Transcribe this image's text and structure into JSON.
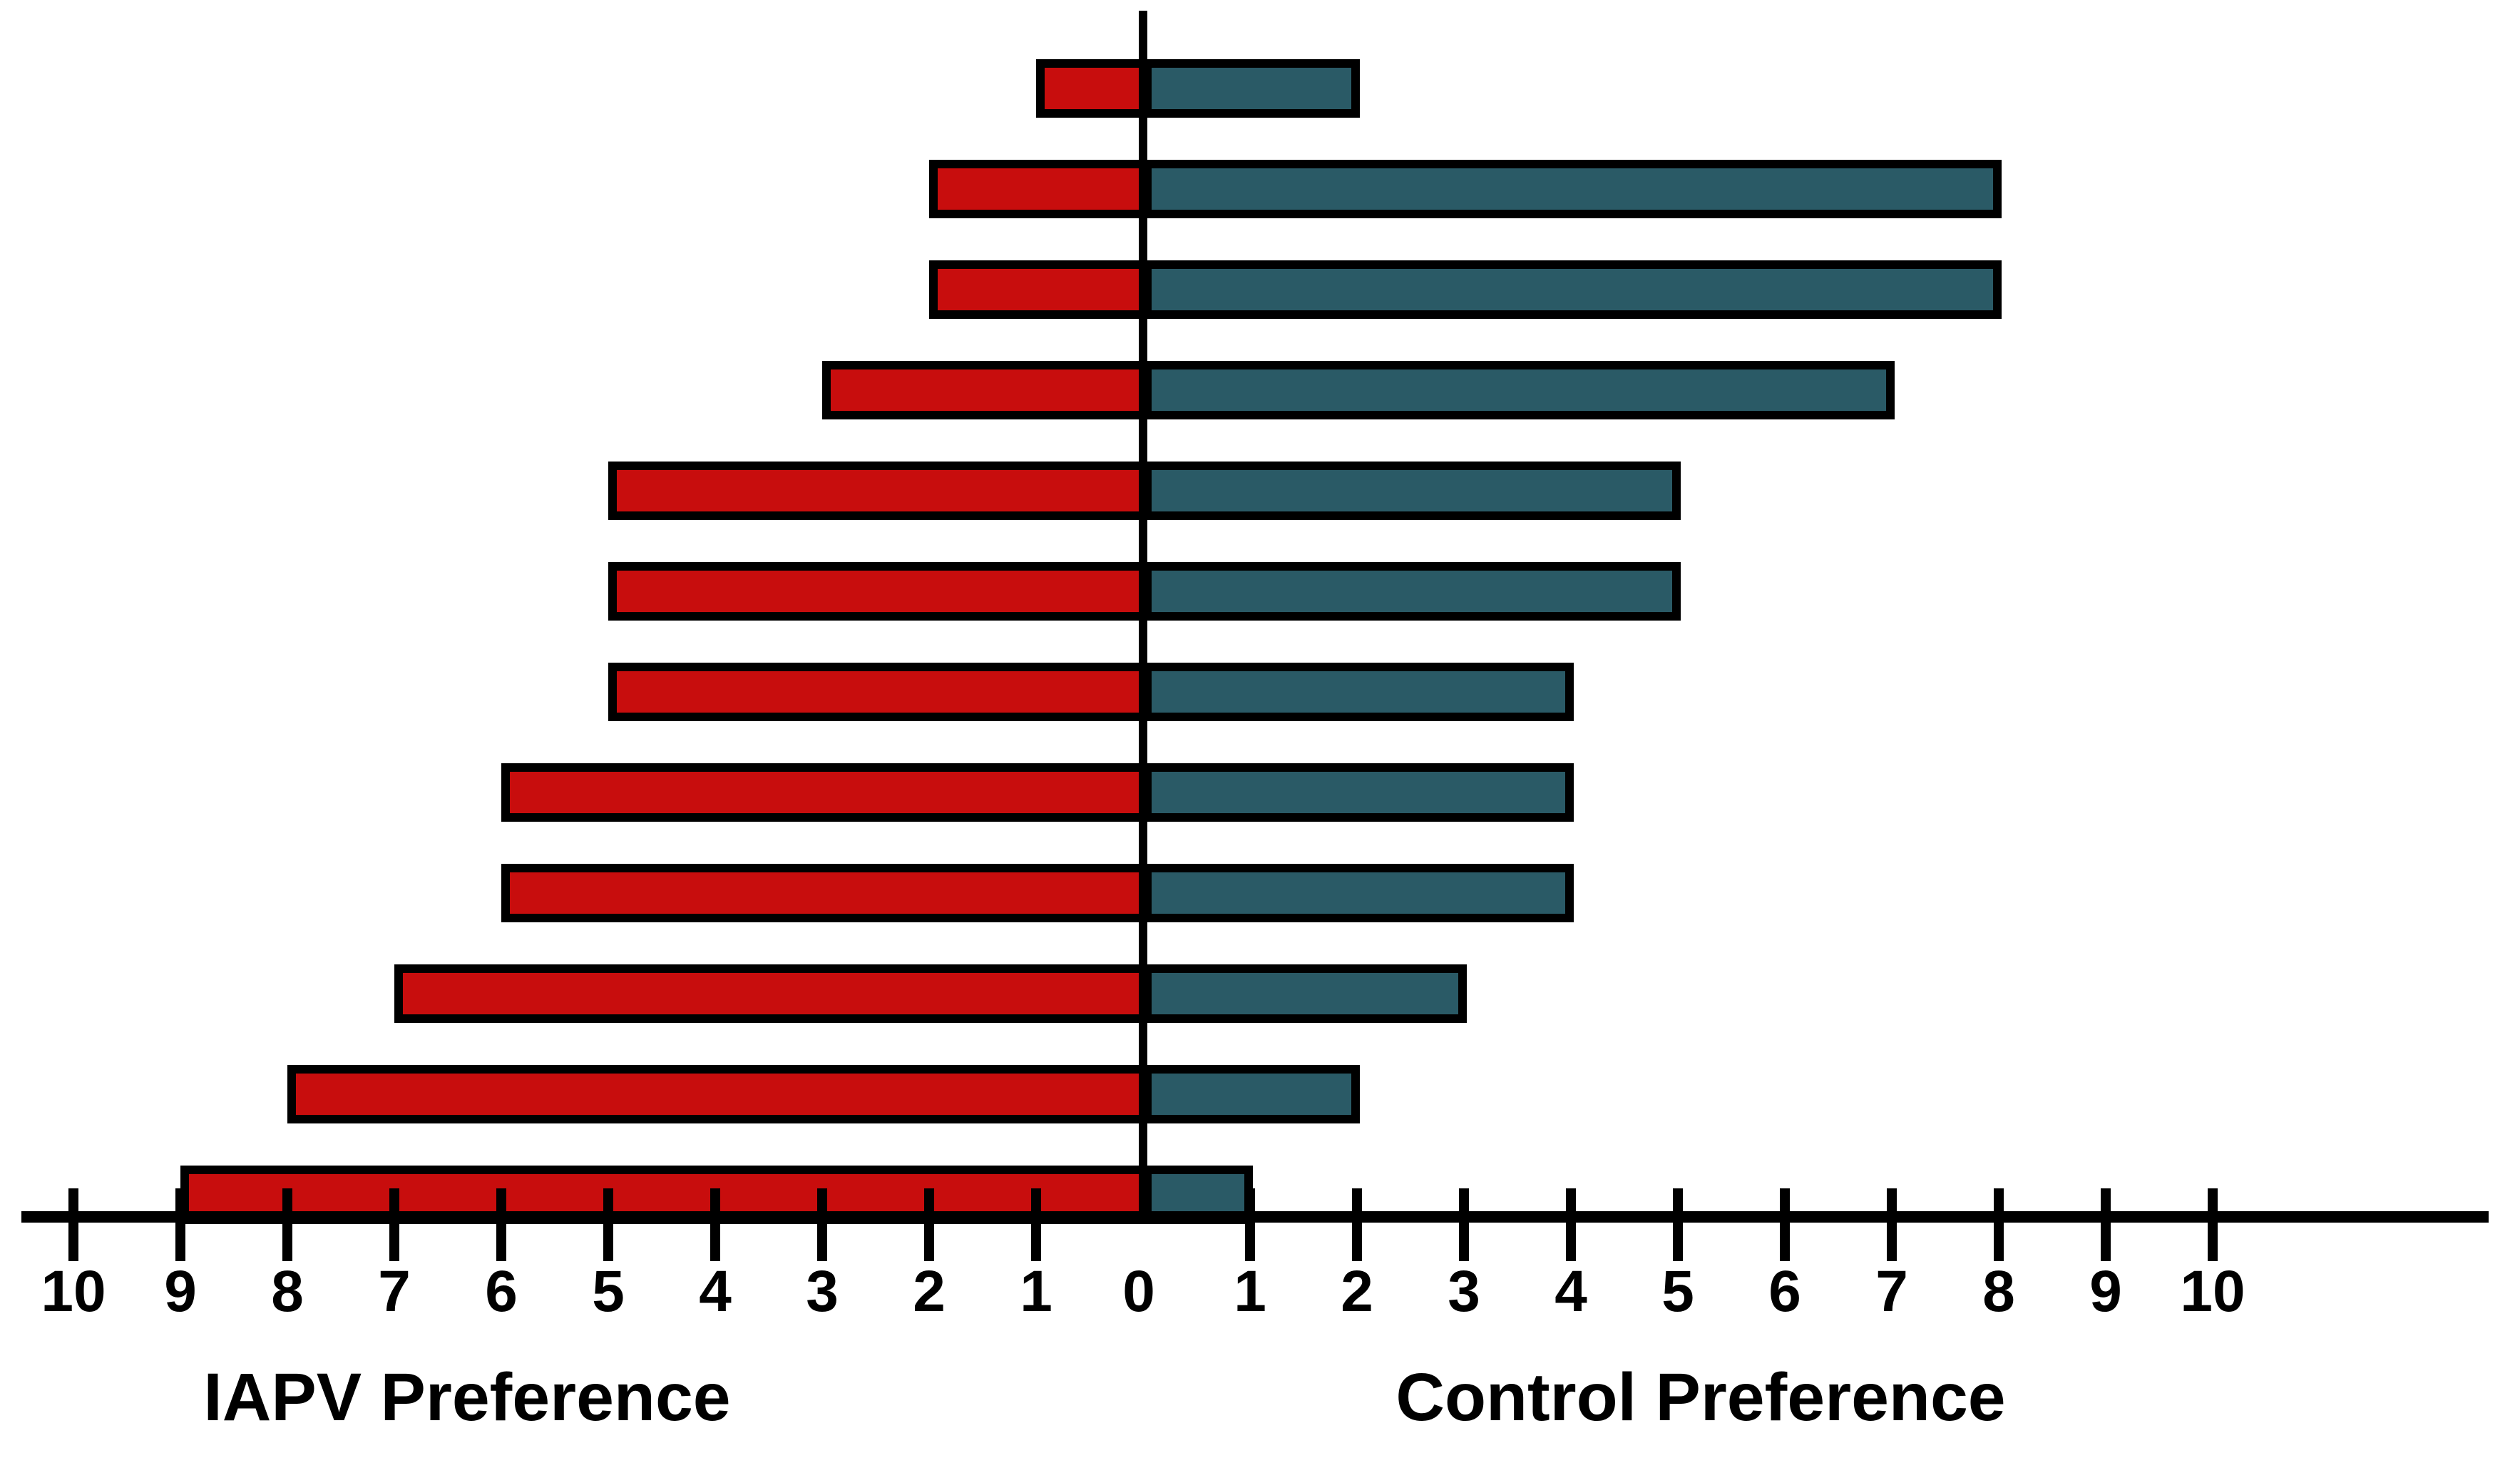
{
  "chart_data": {
    "type": "bar",
    "subtype": "diverging_horizontal_tornado",
    "title": "",
    "row_count": 12,
    "series": [
      {
        "name": "IAPV Preference",
        "side": "left",
        "color": "#C80D0D",
        "values": [
          1,
          2,
          2,
          3,
          5,
          5,
          5,
          6,
          6,
          7,
          8,
          9
        ]
      },
      {
        "name": "Control Preference",
        "side": "right",
        "color": "#2A5A66",
        "values": [
          2,
          8,
          8,
          7,
          5,
          5,
          4,
          4,
          4,
          3,
          2,
          1
        ]
      }
    ],
    "xlabel_left": "IAPV Preference",
    "xlabel_right": "Control Preference",
    "axis": {
      "left_tick_labels": [
        "10",
        "9",
        "8",
        "7",
        "6",
        "5",
        "4",
        "3",
        "2",
        "1"
      ],
      "zero_label": "0",
      "right_tick_labels": [
        "1",
        "2",
        "3",
        "4",
        "5",
        "6",
        "7",
        "8",
        "9",
        "10"
      ],
      "value_min": 0,
      "value_max": 10,
      "grid": false,
      "legend": "none"
    },
    "colors": {
      "iapv_bar": "#C80D0D",
      "control_bar": "#2A5A66",
      "bar_outline": "#000000",
      "axis": "#000000",
      "text": "#000000",
      "background": "#FFFFFF"
    }
  }
}
